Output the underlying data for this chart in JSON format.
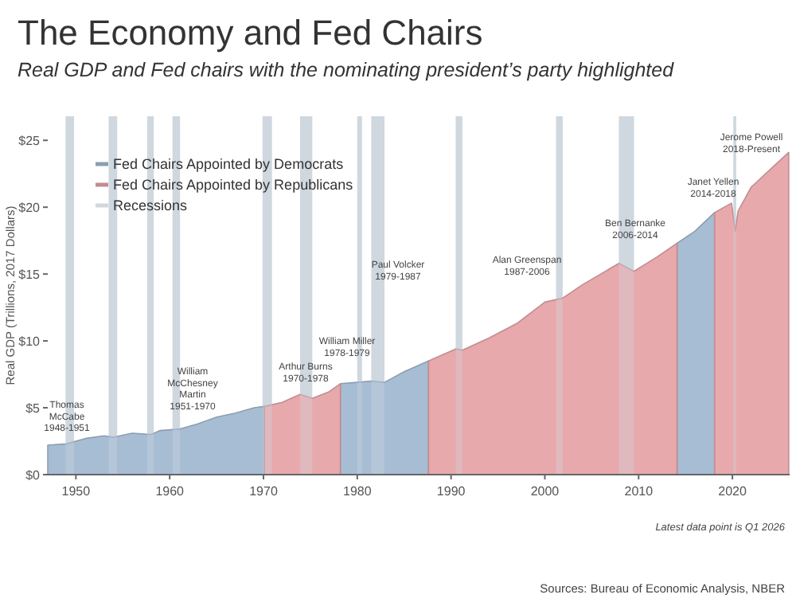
{
  "chart_data": {
    "type": "area",
    "title": "The Economy and Fed Chairs",
    "subtitle": "Real GDP and Fed chairs with the nominating president’s party highlighted",
    "ylabel": "Real GDP (Trillions, 2017 Dollars)",
    "x": [
      1947,
      1949,
      1950,
      1951,
      1953,
      1954,
      1956,
      1958,
      1959,
      1961,
      1963,
      1965,
      1967,
      1969,
      1970.1,
      1972,
      1973.9,
      1975.2,
      1977,
      1978.2,
      1980,
      1981.5,
      1982.9,
      1985,
      1987.6,
      1990.5,
      1991.2,
      1994,
      1997,
      2000,
      2001.9,
      2004,
      2007.9,
      2009.5,
      2012,
      2014.1,
      2016,
      2018.1,
      2019.9,
      2020.3,
      2020.6,
      2022,
      2024,
      2026
    ],
    "series": [
      {
        "name": "Fed Chairs Appointed by Democrats",
        "color": "#a7bdd4",
        "values": [
          2.2,
          2.3,
          2.5,
          2.7,
          2.9,
          2.8,
          3.1,
          3.0,
          3.3,
          3.4,
          3.8,
          4.3,
          4.6,
          5.0,
          5.1,
          null,
          null,
          null,
          null,
          6.8,
          6.9,
          7.0,
          6.9,
          7.7,
          8.5,
          null,
          null,
          null,
          null,
          null,
          null,
          null,
          null,
          null,
          null,
          17.3,
          18.2,
          19.6,
          null,
          null,
          null,
          null,
          null,
          null
        ]
      },
      {
        "name": "Fed Chairs Appointed by Republicans",
        "color": "#e8a9ac",
        "values": [
          null,
          null,
          null,
          null,
          null,
          null,
          null,
          null,
          null,
          null,
          null,
          null,
          null,
          null,
          5.1,
          5.4,
          6.0,
          5.7,
          6.2,
          6.8,
          null,
          null,
          null,
          null,
          8.5,
          9.4,
          9.3,
          10.2,
          11.3,
          12.9,
          13.2,
          14.2,
          15.8,
          15.2,
          16.3,
          17.3,
          null,
          19.6,
          20.3,
          18.2,
          19.7,
          21.5,
          22.8,
          24.1
        ]
      }
    ],
    "bands": [
      {
        "axis": "x",
        "from": 1948.9,
        "to": 1949.8,
        "label": "Recessions",
        "color": "#cfd8df"
      },
      {
        "axis": "x",
        "from": 1953.5,
        "to": 1954.4,
        "color": "#cfd8df"
      },
      {
        "axis": "x",
        "from": 1957.6,
        "to": 1958.3,
        "color": "#cfd8df"
      },
      {
        "axis": "x",
        "from": 1960.3,
        "to": 1961.1,
        "color": "#cfd8df"
      },
      {
        "axis": "x",
        "from": 1969.9,
        "to": 1970.9,
        "color": "#cfd8df"
      },
      {
        "axis": "x",
        "from": 1973.9,
        "to": 1975.2,
        "color": "#cfd8df"
      },
      {
        "axis": "x",
        "from": 1980.0,
        "to": 1980.5,
        "color": "#cfd8df"
      },
      {
        "axis": "x",
        "from": 1981.5,
        "to": 1982.9,
        "color": "#cfd8df"
      },
      {
        "axis": "x",
        "from": 1990.5,
        "to": 1991.2,
        "color": "#cfd8df"
      },
      {
        "axis": "x",
        "from": 2001.2,
        "to": 2001.9,
        "color": "#cfd8df"
      },
      {
        "axis": "x",
        "from": 2007.9,
        "to": 2009.5,
        "color": "#cfd8df"
      },
      {
        "axis": "x",
        "from": 2020.1,
        "to": 2020.4,
        "color": "#cfd8df"
      }
    ],
    "annotations": [
      "Thomas\nMcCabe\n1948-1951",
      "William\nMcChesney\nMartin\n1951-1970",
      "Arthur Burns\n1970-1978",
      "William Miller\n1978-1979",
      "Paul Volcker\n1979-1987",
      "Alan Greenspan\n1987-2006",
      "Ben Bernanke\n2006-2014",
      "Janet Yellen\n2014-2018",
      "Jerome Powell\n2018-Present",
      "Latest data point is Q1 2026",
      "Sources: Bureau of Economic Analysis, NBER"
    ],
    "xlim": [
      1947,
      2026.1
    ],
    "xticks": [
      1950,
      1960,
      1970,
      1980,
      1990,
      2000,
      2010,
      2020
    ],
    "ylim": [
      0,
      26.8
    ],
    "yticks": [
      {
        "value": 0,
        "label": "$0"
      },
      {
        "value": 5,
        "label": "$5"
      },
      {
        "value": 10,
        "label": "$10"
      },
      {
        "value": 15,
        "label": "$15"
      },
      {
        "value": 20,
        "label": "$20"
      },
      {
        "value": 25,
        "label": "$25"
      }
    ],
    "legend": "top left",
    "grid": false
  }
}
